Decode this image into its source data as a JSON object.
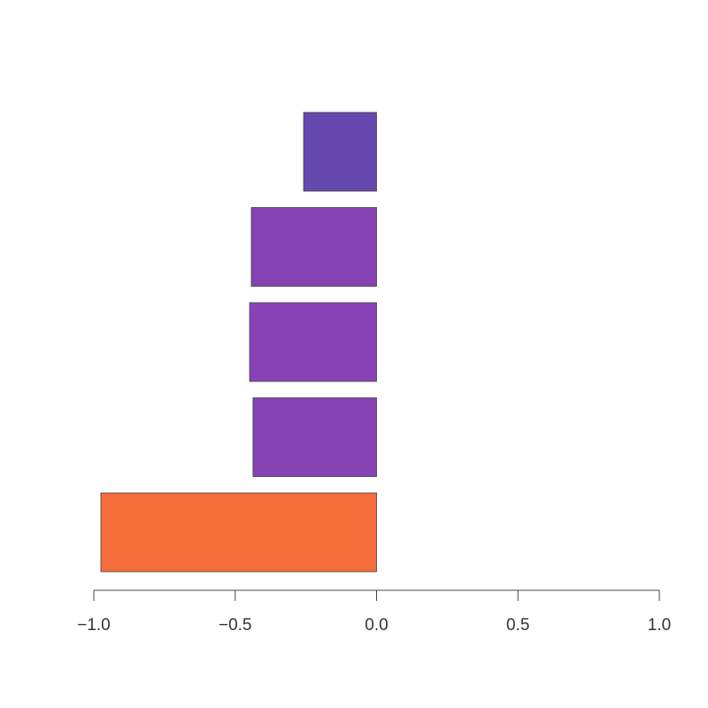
{
  "chart_data": {
    "type": "bar",
    "orientation": "horizontal",
    "categories": [
      null,
      null,
      null,
      null,
      null
    ],
    "values": [
      -0.975,
      -0.437,
      -0.449,
      -0.443,
      -0.258
    ],
    "colors": [
      "#f46d3b",
      "#8442b2",
      "#8842b5",
      "#8442b3",
      "#6548ad"
    ],
    "xlim": [
      -1,
      1
    ],
    "xticks": [
      {
        "value": -1,
        "label": "−1.0"
      },
      {
        "value": -0.5,
        "label": "−0.5"
      },
      {
        "value": 0,
        "label": "0.0"
      },
      0.5,
      {
        "value": 1,
        "label": "1.0"
      }
    ]
  }
}
